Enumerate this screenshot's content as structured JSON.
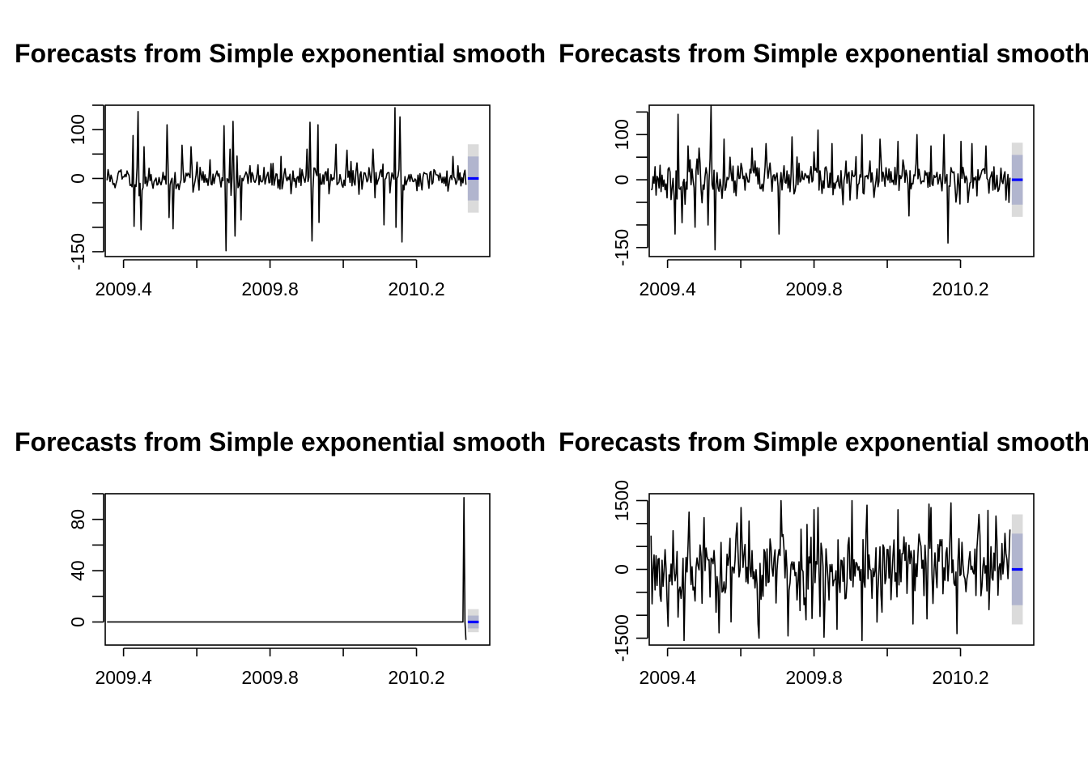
{
  "chart_data": [
    {
      "type": "line",
      "title": "Forecasts from Simple exponential smoothing",
      "xlabel": "",
      "ylabel": "",
      "xlim": [
        2009.35,
        2010.4
      ],
      "ylim": [
        -160,
        150
      ],
      "x_ticks": [
        2009.4,
        2009.6,
        2009.8,
        2010.0,
        2010.2
      ],
      "x_tick_labels": [
        "2009.4",
        "",
        "2009.8",
        "",
        "2010.2"
      ],
      "y_ticks": [
        -150,
        -100,
        -50,
        0,
        50,
        100,
        150
      ],
      "y_tick_labels": [
        "-150",
        "",
        "",
        "0",
        "",
        "100",
        ""
      ],
      "series_start": 2009.355,
      "series_end": 2010.335,
      "series_points": 360,
      "series_noise_sd": 14,
      "spikes": [
        [
          2009.425,
          88
        ],
        [
          2009.43,
          -98
        ],
        [
          2009.44,
          137
        ],
        [
          2009.447,
          -105
        ],
        [
          2009.455,
          65
        ],
        [
          2009.52,
          110
        ],
        [
          2009.525,
          -80
        ],
        [
          2009.535,
          -103
        ],
        [
          2009.56,
          68
        ],
        [
          2009.585,
          65
        ],
        [
          2009.675,
          108
        ],
        [
          2009.68,
          -148
        ],
        [
          2009.69,
          60
        ],
        [
          2009.7,
          117
        ],
        [
          2009.705,
          -118
        ],
        [
          2009.71,
          46
        ],
        [
          2009.72,
          -85
        ],
        [
          2009.83,
          45
        ],
        [
          2009.9,
          60
        ],
        [
          2009.91,
          115
        ],
        [
          2009.915,
          -128
        ],
        [
          2009.93,
          110
        ],
        [
          2009.935,
          -90
        ],
        [
          2009.98,
          70
        ],
        [
          2010.01,
          58
        ],
        [
          2010.08,
          60
        ],
        [
          2010.11,
          -95
        ],
        [
          2010.14,
          145
        ],
        [
          2010.145,
          -100
        ],
        [
          2010.155,
          126
        ],
        [
          2010.16,
          -130
        ],
        [
          2010.3,
          45
        ]
      ],
      "forecast": {
        "x_start": 2010.34,
        "x_end": 2010.37,
        "point": 0,
        "lo80": -45,
        "hi80": 45,
        "lo95": -70,
        "hi95": 70
      },
      "colors": {
        "series": "#000000",
        "forecast": "#0000ff",
        "band95": "#dbdbdb",
        "band80": "#b1b5ce"
      }
    },
    {
      "type": "line",
      "title": "Forecasts from Simple exponential smoothing",
      "xlabel": "",
      "ylabel": "",
      "xlim": [
        2009.35,
        2010.4
      ],
      "ylim": [
        -170,
        165
      ],
      "x_ticks": [
        2009.4,
        2009.6,
        2009.8,
        2010.0,
        2010.2
      ],
      "x_tick_labels": [
        "2009.4",
        "",
        "2009.8",
        "",
        "2010.2"
      ],
      "y_ticks": [
        -150,
        -100,
        -50,
        0,
        50,
        100,
        150
      ],
      "y_tick_labels": [
        "-150",
        "",
        "",
        "0",
        "",
        "100",
        ""
      ],
      "series_start": 2009.355,
      "series_end": 2010.335,
      "series_points": 360,
      "series_noise_sd": 20,
      "spikes": [
        [
          2009.4,
          -40
        ],
        [
          2009.42,
          -120
        ],
        [
          2009.43,
          145
        ],
        [
          2009.44,
          -95
        ],
        [
          2009.455,
          75
        ],
        [
          2009.475,
          -105
        ],
        [
          2009.485,
          70
        ],
        [
          2009.51,
          -100
        ],
        [
          2009.52,
          170
        ],
        [
          2009.53,
          -155
        ],
        [
          2009.555,
          90
        ],
        [
          2009.63,
          70
        ],
        [
          2009.67,
          80
        ],
        [
          2009.705,
          -120
        ],
        [
          2009.74,
          95
        ],
        [
          2009.81,
          110
        ],
        [
          2009.85,
          80
        ],
        [
          2009.88,
          -55
        ],
        [
          2009.93,
          100
        ],
        [
          2009.98,
          90
        ],
        [
          2010.03,
          85
        ],
        [
          2010.06,
          -80
        ],
        [
          2010.08,
          100
        ],
        [
          2010.12,
          75
        ],
        [
          2010.155,
          100
        ],
        [
          2010.165,
          -140
        ],
        [
          2010.2,
          85
        ],
        [
          2010.23,
          80
        ],
        [
          2010.27,
          75
        ]
      ],
      "forecast": {
        "x_start": 2010.34,
        "x_end": 2010.37,
        "point": 0,
        "lo80": -55,
        "hi80": 55,
        "lo95": -82,
        "hi95": 82
      },
      "colors": {
        "series": "#000000",
        "forecast": "#0000ff",
        "band95": "#dbdbdb",
        "band80": "#b1b5ce"
      }
    },
    {
      "type": "line",
      "title": "Forecasts from Simple exponential smoothing",
      "xlabel": "",
      "ylabel": "",
      "xlim": [
        2009.35,
        2010.4
      ],
      "ylim": [
        -18,
        100
      ],
      "x_ticks": [
        2009.4,
        2009.6,
        2009.8,
        2010.0,
        2010.2
      ],
      "x_tick_labels": [
        "2009.4",
        "",
        "2009.8",
        "",
        "2010.2"
      ],
      "y_ticks": [
        0,
        20,
        40,
        60,
        80,
        100
      ],
      "y_tick_labels": [
        "0",
        "",
        "40",
        "",
        "80",
        ""
      ],
      "series_start": 2009.355,
      "series_end": 2010.335,
      "series_points": 360,
      "series_noise_sd": 0,
      "spikes": [
        [
          2010.33,
          97
        ],
        [
          2010.335,
          -14
        ]
      ],
      "forecast": {
        "x_start": 2010.34,
        "x_end": 2010.37,
        "point": 0,
        "lo80": -5,
        "hi80": 5,
        "lo95": -8,
        "hi95": 10
      },
      "colors": {
        "series": "#000000",
        "forecast": "#0000ff",
        "band95": "#dbdbdb",
        "band80": "#b1b5ce"
      }
    },
    {
      "type": "line",
      "title": "Forecasts from Simple exponential smoothing",
      "xlabel": "",
      "ylabel": "",
      "xlim": [
        2009.35,
        2010.4
      ],
      "ylim": [
        -1650,
        1650
      ],
      "x_ticks": [
        2009.4,
        2009.6,
        2009.8,
        2010.0,
        2010.2
      ],
      "x_tick_labels": [
        "2009.4",
        "",
        "2009.8",
        "",
        "2010.2"
      ],
      "y_ticks": [
        -1500,
        -1000,
        -500,
        0,
        500,
        1000,
        1500
      ],
      "y_tick_labels": [
        "-1500",
        "",
        "",
        "0",
        "",
        "",
        "1500"
      ],
      "series_start": 2009.355,
      "series_end": 2010.335,
      "series_points": 360,
      "series_noise_sd": 520,
      "spikes": [
        [
          2009.445,
          -1550
        ],
        [
          2009.46,
          1250
        ],
        [
          2009.6,
          1350
        ],
        [
          2009.65,
          -1500
        ],
        [
          2009.71,
          1500
        ],
        [
          2009.73,
          -1450
        ],
        [
          2009.81,
          1350
        ],
        [
          2009.905,
          1500
        ],
        [
          2009.93,
          -1550
        ],
        [
          2009.945,
          1400
        ],
        [
          2010.03,
          1300
        ],
        [
          2010.12,
          1350
        ],
        [
          2010.175,
          1450
        ],
        [
          2010.19,
          -1400
        ],
        [
          2010.25,
          1200
        ]
      ],
      "forecast": {
        "x_start": 2010.34,
        "x_end": 2010.37,
        "point": 0,
        "lo80": -780,
        "hi80": 780,
        "lo95": -1200,
        "hi95": 1200
      },
      "colors": {
        "series": "#000000",
        "forecast": "#0000ff",
        "band95": "#dbdbdb",
        "band80": "#b1b5ce"
      }
    }
  ]
}
